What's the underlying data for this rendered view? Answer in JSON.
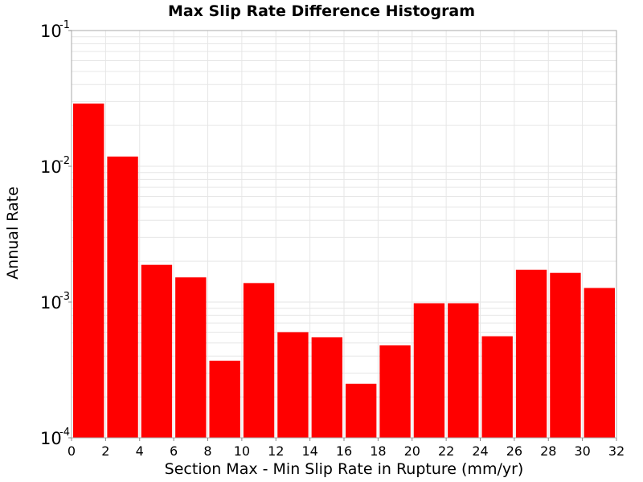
{
  "chart_data": {
    "type": "bar",
    "title": "Max Slip Rate Difference Histogram",
    "xlabel": "Section Max - Min Slip Rate in Rupture (mm/yr)",
    "ylabel": "Annual Rate",
    "y_scale": "log",
    "xlim": [
      0,
      32
    ],
    "ylim": [
      0.0001,
      0.1
    ],
    "x_ticks": [
      "0",
      "2",
      "4",
      "6",
      "8",
      "10",
      "12",
      "14",
      "16",
      "18",
      "20",
      "22",
      "24",
      "26",
      "28",
      "30",
      "32"
    ],
    "y_ticks": [
      {
        "base": "10",
        "exp": "-4",
        "value": 0.0001
      },
      {
        "base": "10",
        "exp": "-3",
        "value": 0.001
      },
      {
        "base": "10",
        "exp": "-2",
        "value": 0.01
      },
      {
        "base": "10",
        "exp": "-1",
        "value": 0.1
      }
    ],
    "bin_width": 2,
    "bins": [
      {
        "x0": 0,
        "value": 0.029
      },
      {
        "x0": 2,
        "value": 0.0118
      },
      {
        "x0": 4,
        "value": 0.00188
      },
      {
        "x0": 6,
        "value": 0.00152
      },
      {
        "x0": 8,
        "value": 0.00037
      },
      {
        "x0": 10,
        "value": 0.00138
      },
      {
        "x0": 12,
        "value": 0.0006
      },
      {
        "x0": 14,
        "value": 0.00055
      },
      {
        "x0": 16,
        "value": 0.00025
      },
      {
        "x0": 18,
        "value": 0.00048
      },
      {
        "x0": 20,
        "value": 0.00098
      },
      {
        "x0": 22,
        "value": 0.00098
      },
      {
        "x0": 24,
        "value": 0.00056
      },
      {
        "x0": 26,
        "value": 0.00173
      },
      {
        "x0": 28,
        "value": 0.00164
      },
      {
        "x0": 30,
        "value": 0.00127
      }
    ],
    "grid": true,
    "bar_color": "#ff0000",
    "grid_color": "#e6e6e6",
    "frame_color": "#aaaaaa"
  }
}
